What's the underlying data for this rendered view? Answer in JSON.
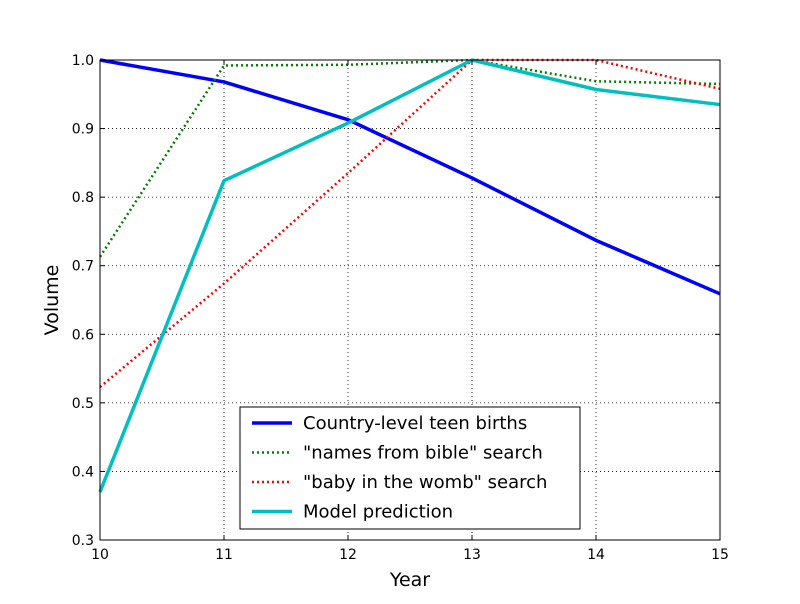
{
  "chart_data": {
    "type": "line",
    "title": "",
    "xlabel": "Year",
    "ylabel": "Volume",
    "x": [
      10,
      11,
      12,
      13,
      14,
      15
    ],
    "xlim": [
      10,
      15
    ],
    "ylim": [
      0.3,
      1.0
    ],
    "x_ticks": [
      "10",
      "11",
      "12",
      "13",
      "14",
      "15"
    ],
    "y_ticks": [
      "0.3",
      "0.4",
      "0.5",
      "0.6",
      "0.7",
      "0.8",
      "0.9",
      "1.0"
    ],
    "grid": true,
    "legend_position": "lower-center",
    "series": [
      {
        "name": "Country-level teen births",
        "color": "#0000ff",
        "style": "solid",
        "values": [
          1.0,
          0.968,
          0.913,
          0.828,
          0.737,
          0.659
        ]
      },
      {
        "name": "\"names from bible\" search",
        "color": "#008000",
        "style": "dotted",
        "values": [
          0.713,
          0.992,
          0.993,
          1.0,
          0.969,
          0.965
        ]
      },
      {
        "name": "\"baby in the womb\" search",
        "color": "#ff0000",
        "style": "dotted",
        "values": [
          0.523,
          0.674,
          0.835,
          1.0,
          1.0,
          0.958
        ]
      },
      {
        "name": "Model prediction",
        "color": "#00bfbf",
        "style": "solid",
        "values": [
          0.37,
          0.824,
          0.908,
          1.0,
          0.957,
          0.935
        ]
      }
    ]
  }
}
